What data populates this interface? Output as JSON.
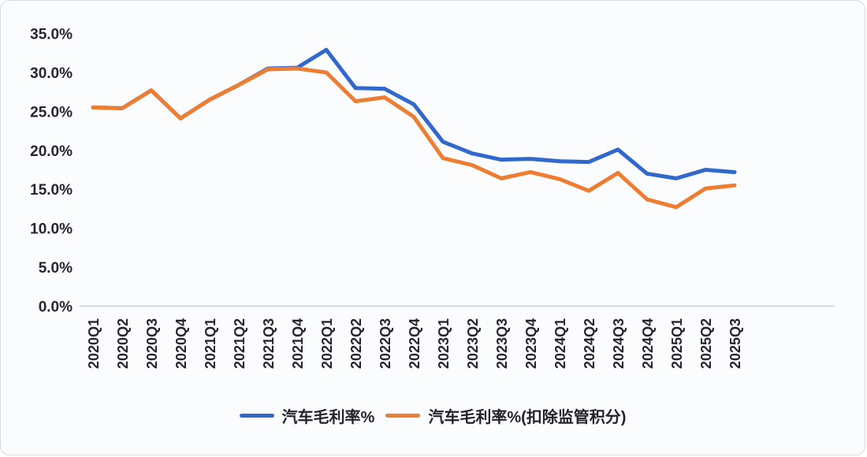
{
  "chart_data": {
    "type": "line",
    "title": "",
    "categories": [
      "2020Q1",
      "2020Q2",
      "2020Q3",
      "2020Q4",
      "2021Q1",
      "2021Q2",
      "2021Q3",
      "2021Q4",
      "2022Q1",
      "2022Q2",
      "2022Q3",
      "2022Q4",
      "2023Q1",
      "2023Q2",
      "2023Q3",
      "2023Q4",
      "2024Q1",
      "2024Q2",
      "2024Q3",
      "2024Q4",
      "2025Q1",
      "2025Q2",
      "2025Q3"
    ],
    "series": [
      {
        "name": "汽车毛利率%",
        "color": "#3168CC",
        "values": [
          25.5,
          25.4,
          27.7,
          24.1,
          26.5,
          28.4,
          30.5,
          30.6,
          32.9,
          28.0,
          27.9,
          25.9,
          21.1,
          19.6,
          18.8,
          18.9,
          18.6,
          18.5,
          20.1,
          17.0,
          16.4,
          17.5,
          17.2
        ]
      },
      {
        "name": "汽车毛利率%(扣除监管积分)",
        "color": "#ED7D31",
        "values": [
          25.5,
          25.4,
          27.7,
          24.1,
          26.5,
          28.4,
          30.4,
          30.5,
          30.0,
          26.3,
          26.8,
          24.3,
          19.0,
          18.1,
          16.4,
          17.2,
          16.3,
          14.8,
          17.1,
          13.7,
          12.7,
          15.1,
          15.5
        ]
      }
    ],
    "y_axis": {
      "min": 0,
      "max": 35,
      "ticks": [
        {
          "value": 35,
          "label": "35.0%"
        },
        {
          "value": 30,
          "label": "30.0%"
        },
        {
          "value": 25,
          "label": "25.0%"
        },
        {
          "value": 20,
          "label": "20.0%"
        },
        {
          "value": 15,
          "label": "15.0%"
        },
        {
          "value": 10,
          "label": "10.0%"
        },
        {
          "value": 5,
          "label": "5.0%"
        },
        {
          "value": 0,
          "label": "0.0%"
        }
      ]
    },
    "x_axis": {
      "label_rotation": -90
    },
    "legend_position": "bottom",
    "gridlines": false
  },
  "colors": {
    "axis_line": "#c9cdd4",
    "tick_text": "#26262e",
    "frame_border": "#d7dbe2",
    "card_background": "#fbfcfe"
  }
}
